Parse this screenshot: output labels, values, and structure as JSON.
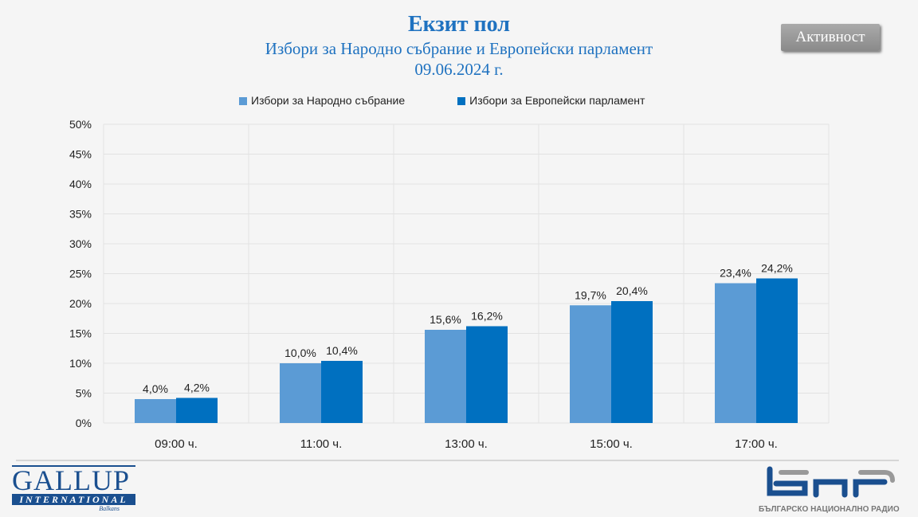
{
  "header": {
    "title": "Екзит пол",
    "subtitle": "Избори за Народно събрание и Европейски парламент",
    "date": "09.06.2024 г."
  },
  "activity_button": "Активност",
  "logos": {
    "gallup": "GALLUP",
    "gallup_sub": "INTERNATIONAL",
    "gallup_region": "Balkans",
    "bnr_sub": "БЪЛГАРСКО НАЦИОНАЛНО РАДИО"
  },
  "colors": {
    "national": "#5b9bd5",
    "european": "#0070c0"
  },
  "chart_data": {
    "type": "bar",
    "categories": [
      "09:00 ч.",
      "11:00 ч.",
      "13:00 ч.",
      "15:00 ч.",
      "17:00 ч."
    ],
    "series": [
      {
        "name": "Избори за Народно събрание",
        "values": [
          4.0,
          10.0,
          15.6,
          19.7,
          23.4
        ],
        "labels": [
          "4,0%",
          "10,0%",
          "15,6%",
          "19,7%",
          "23,4%"
        ]
      },
      {
        "name": "Избори за Европейски парламент",
        "values": [
          4.2,
          10.4,
          16.2,
          20.4,
          24.2
        ],
        "labels": [
          "4,2%",
          "10,4%",
          "16,2%",
          "20,4%",
          "24,2%"
        ]
      }
    ],
    "yticks": [
      "0%",
      "5%",
      "10%",
      "15%",
      "20%",
      "25%",
      "30%",
      "35%",
      "40%",
      "45%",
      "50%"
    ],
    "ylim": [
      0,
      50
    ],
    "grid": true,
    "legend": "top"
  }
}
